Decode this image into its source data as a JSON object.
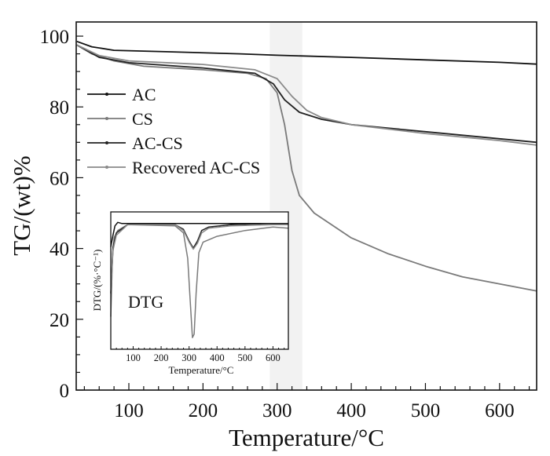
{
  "chart_data": [
    {
      "type": "line",
      "title": "",
      "xlabel": "Temperature/°C",
      "ylabel": "TG/(wt)%",
      "xlim": [
        29,
        650
      ],
      "ylim": [
        0,
        104
      ],
      "xticks": [
        100,
        200,
        300,
        400,
        500,
        600
      ],
      "yticks": [
        0,
        20,
        40,
        60,
        80,
        100
      ],
      "grid": false,
      "legend_position": "upper-left",
      "highlight_band": [
        290,
        334
      ],
      "series": [
        {
          "name": "AC",
          "color": "#111111",
          "x": [
            30,
            50,
            80,
            150,
            250,
            300,
            400,
            500,
            600,
            650
          ],
          "y": [
            98.5,
            97,
            96,
            95.6,
            95,
            94.6,
            94,
            93.3,
            92.6,
            92.1
          ]
        },
        {
          "name": "CS",
          "color": "#7a7a7a",
          "x": [
            30,
            50,
            80,
            120,
            200,
            260,
            285,
            300,
            310,
            320,
            330,
            350,
            400,
            450,
            500,
            550,
            600,
            650
          ],
          "y": [
            97.5,
            95,
            93,
            91.5,
            90.5,
            89.5,
            88,
            84,
            75,
            62,
            55,
            50,
            43,
            38.5,
            35,
            32,
            30,
            28
          ]
        },
        {
          "name": "AC-CS",
          "color": "#222222",
          "x": [
            30,
            60,
            100,
            200,
            270,
            295,
            310,
            330,
            360,
            400,
            500,
            600,
            650
          ],
          "y": [
            97.5,
            94,
            92.5,
            91,
            89.5,
            86.5,
            82,
            78.5,
            76.5,
            75,
            73,
            71,
            70
          ]
        },
        {
          "name": "Recovered AC-CS",
          "color": "#8a8a8a",
          "x": [
            30,
            60,
            100,
            200,
            270,
            300,
            320,
            340,
            360,
            400,
            500,
            600,
            650
          ],
          "y": [
            97.5,
            94.5,
            93,
            92,
            90.5,
            88,
            83,
            79,
            77,
            75,
            72.5,
            70.5,
            69.2
          ]
        }
      ]
    },
    {
      "type": "line",
      "title": "DTG",
      "xlabel": "Temperature/°C",
      "ylabel": "DTG/(%·°C⁻¹)",
      "xlim": [
        20,
        655
      ],
      "ylim": [
        -10.8,
        1
      ],
      "xticks": [
        100,
        200,
        300,
        400,
        500,
        600
      ],
      "series": [
        {
          "name": "AC",
          "color": "#111111",
          "x": [
            20,
            28,
            35,
            45,
            60,
            100,
            300,
            600,
            655
          ],
          "y": [
            -2,
            -1,
            -0.2,
            0.1,
            0,
            0,
            0,
            0,
            0
          ]
        },
        {
          "name": "CS",
          "color": "#7a7a7a",
          "x": [
            20,
            26,
            32,
            45,
            80,
            250,
            280,
            295,
            305,
            312,
            318,
            325,
            335,
            350,
            400,
            500,
            600,
            655
          ],
          "y": [
            -8,
            -3,
            -1.2,
            -0.6,
            -0.1,
            -0.2,
            -0.8,
            -3,
            -7,
            -9.8,
            -9.5,
            -6,
            -2.5,
            -1.6,
            -1.1,
            -0.6,
            -0.3,
            -0.4
          ]
        },
        {
          "name": "AC-CS",
          "color": "#222222",
          "x": [
            20,
            28,
            40,
            80,
            250,
            280,
            300,
            315,
            330,
            345,
            370,
            450,
            600,
            655
          ],
          "y": [
            -6,
            -2,
            -0.8,
            -0.1,
            -0.1,
            -0.5,
            -1.5,
            -2.1,
            -1.5,
            -0.6,
            -0.3,
            -0.1,
            0,
            0
          ]
        },
        {
          "name": "Recovered AC-CS",
          "color": "#8a8a8a",
          "x": [
            20,
            28,
            40,
            80,
            250,
            280,
            300,
            315,
            330,
            345,
            370,
            450,
            600,
            655
          ],
          "y": [
            -6,
            -2.3,
            -1,
            -0.1,
            -0.1,
            -0.6,
            -1.6,
            -2.2,
            -1.7,
            -0.8,
            -0.4,
            -0.2,
            -0.1,
            -0.1
          ]
        }
      ]
    }
  ]
}
